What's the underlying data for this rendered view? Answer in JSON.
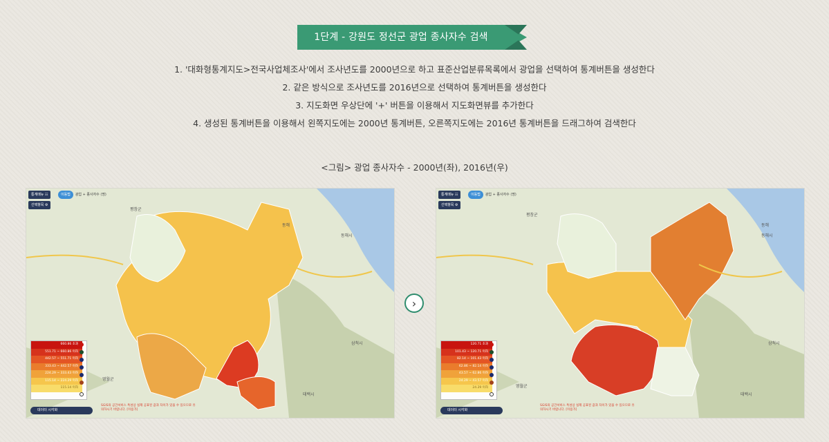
{
  "title": "1단계 - 강원도 정선군 광업 종사자수 검색",
  "steps": [
    "1. '대화형통계지도>전국사업체조사'에서 조사년도를 2000년으로 하고 표준산업분류목록에서 광업을 선택하여 통계버튼을 생성한다",
    "2. 같은 방식으로 조사년도를 2016년으로 선택하여 통계버튼을 생성한다",
    "3. 지도화면 우상단에 '+' 버튼을 이용해서 지도화면뷰를 추가한다",
    "4. 생성된 통계버튼을 이용해서 왼쪽지도에는 2000년 통계버튼, 오른쪽지도에는 2016년 통계버튼을 드래그하여 검색한다"
  ],
  "figure_caption": "<그림> 광업 종사자수 - 2000년(좌), 2016년(우)",
  "colors": {
    "ribbon": "#3a9a74",
    "ribbon_fold": "#2b7559",
    "next_border": "#2f8d6e",
    "legend_scale": [
      "#c8140f",
      "#d6321c",
      "#e45524",
      "#ea7c2c",
      "#f0a23a",
      "#f6c64c",
      "#f8dc6a"
    ]
  },
  "next_button_icon": "chevron-right-icon",
  "maps": {
    "left": {
      "menu_label": "통계메뉴",
      "select_label": "선택항목",
      "crumb_pill": "이동법",
      "crumb_text": "광업 + 종사자수 (명)",
      "legend": [
        "660.86 초과",
        "551.71 ~ 660.86 이하",
        "442.57 ~ 551.71 이하",
        "333.43 ~ 442.57 이하",
        "224.29 ~ 333.43 이하",
        "115.14 ~ 224.29 이하",
        "115.14 이하"
      ],
      "note": "SGIS의 공간서비스 특성상 실제 공표된 값과 차이가 있을 수 있으므로 유의하시기 바랍니다. [이용가]",
      "data_button": "데이터 시각화",
      "place_labels": [
        "평창군",
        "동해시",
        "삼척시",
        "영월군",
        "태백시",
        "동해"
      ]
    },
    "right": {
      "menu_label": "통계메뉴",
      "select_label": "선택항목",
      "crumb_pill": "이동법",
      "crumb_text": "광업 + 종사자수 (명)",
      "legend": [
        "120.71 초과",
        "101.43 ~ 120.71 이하",
        "82.14 ~ 101.43 이하",
        "62.86 ~ 82.14 이하",
        "43.57 ~ 62.86 이하",
        "24.29 ~ 43.57 이하",
        "24.29 이하"
      ],
      "note": "SGIS의 공간서비스 특성상 실제 공표된 값과 차이가 있을 수 있으므로 유의하시기 바랍니다. [이용가]",
      "data_button": "데이터 시각화",
      "place_labels": [
        "평창군",
        "동해시",
        "삼척시",
        "영월군",
        "태백시",
        "동해"
      ]
    }
  }
}
